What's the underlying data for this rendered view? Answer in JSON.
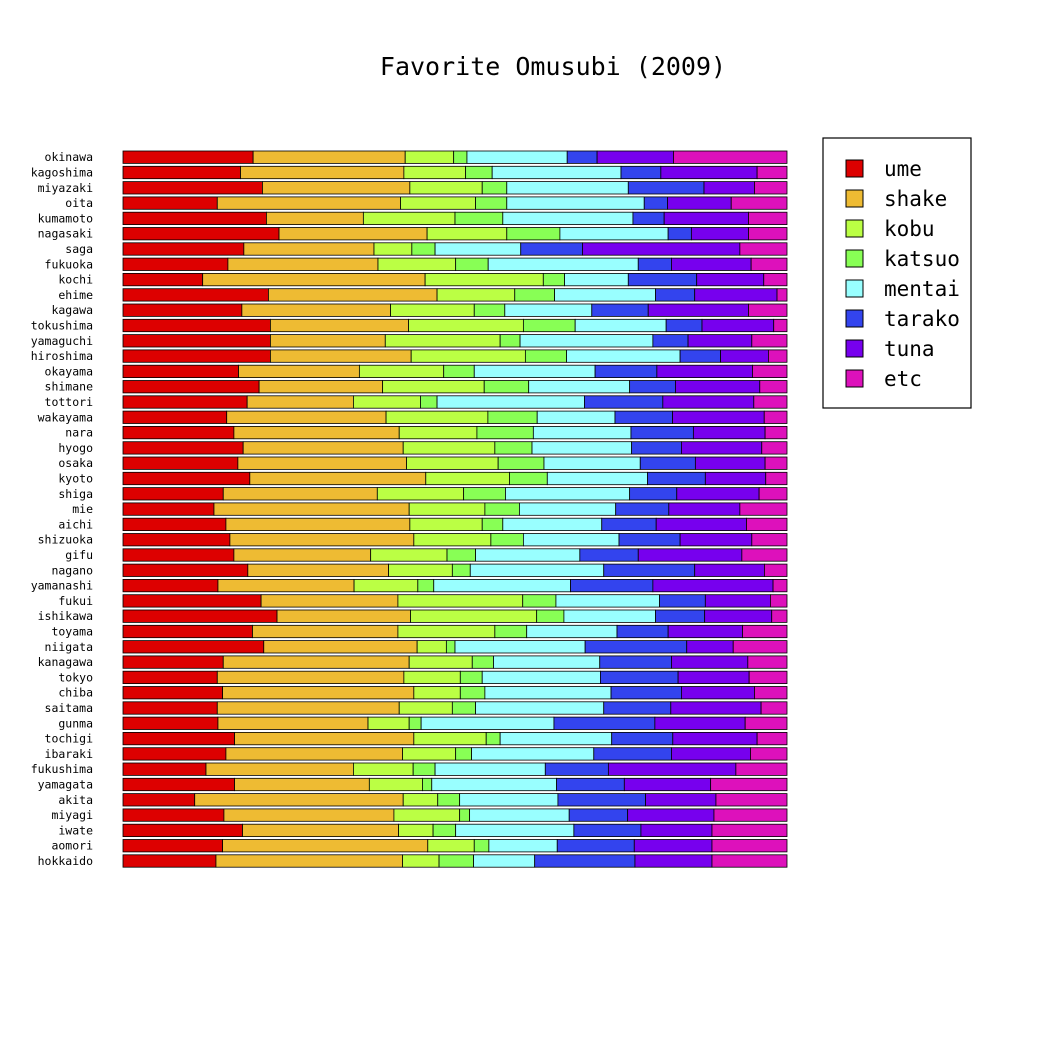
{
  "chart_data": {
    "type": "bar",
    "orientation": "horizontal",
    "stacked": "percent",
    "title": "Favorite Omusubi (2009)",
    "legend_position": "right",
    "categories": [
      "okinawa",
      "kagoshima",
      "miyazaki",
      "oita",
      "kumamoto",
      "nagasaki",
      "saga",
      "fukuoka",
      "kochi",
      "ehime",
      "kagawa",
      "tokushima",
      "yamaguchi",
      "hiroshima",
      "okayama",
      "shimane",
      "tottori",
      "wakayama",
      "nara",
      "hyogo",
      "osaka",
      "kyoto",
      "shiga",
      "mie",
      "aichi",
      "shizuoka",
      "gifu",
      "nagano",
      "yamanashi",
      "fukui",
      "ishikawa",
      "toyama",
      "niigata",
      "kanagawa",
      "tokyo",
      "chiba",
      "saitama",
      "gunma",
      "tochigi",
      "ibaraki",
      "fukushima",
      "yamagata",
      "akita",
      "miyagi",
      "iwate",
      "aomori",
      "hokkaido"
    ],
    "series": [
      {
        "name": "ume",
        "color": "#dd0000",
        "values": [
          19.6,
          17.7,
          21.0,
          14.2,
          21.6,
          23.5,
          18.2,
          15.8,
          12.0,
          21.9,
          17.9,
          22.2,
          22.2,
          22.2,
          17.4,
          20.5,
          18.7,
          16.4,
          16.7,
          18.1,
          17.3,
          19.1,
          15.1,
          13.7,
          15.5,
          16.1,
          16.7,
          18.8,
          14.3,
          20.8,
          23.2,
          19.5,
          21.2,
          15.1,
          14.2,
          15.0,
          14.2,
          14.3,
          16.8,
          15.5,
          12.5,
          16.8,
          10.8,
          15.2,
          18.0,
          15.0,
          14.0
        ]
      },
      {
        "name": "shake",
        "color": "#eebb33",
        "values": [
          22.9,
          24.6,
          22.2,
          27.6,
          14.6,
          22.3,
          19.6,
          22.6,
          33.5,
          25.4,
          22.4,
          20.8,
          17.3,
          21.2,
          18.2,
          18.6,
          16.0,
          25.2,
          24.9,
          24.1,
          25.4,
          26.5,
          23.2,
          29.4,
          27.7,
          27.7,
          20.6,
          21.2,
          20.5,
          20.6,
          20.1,
          21.9,
          23.1,
          28.0,
          28.1,
          28.8,
          27.4,
          22.6,
          27.0,
          26.6,
          22.2,
          20.3,
          31.4,
          25.6,
          23.5,
          30.9,
          28.1
        ]
      },
      {
        "name": "kobu",
        "color": "#bbff44",
        "values": [
          7.3,
          9.3,
          10.9,
          11.3,
          13.8,
          12.0,
          5.7,
          11.7,
          17.8,
          11.7,
          12.6,
          17.3,
          17.3,
          17.2,
          12.7,
          15.3,
          10.1,
          16.1,
          11.7,
          13.8,
          13.8,
          12.6,
          13.0,
          11.4,
          10.9,
          11.6,
          11.5,
          9.6,
          9.6,
          18.8,
          19.0,
          14.6,
          4.4,
          9.5,
          8.5,
          7.0,
          8.0,
          6.2,
          10.9,
          8.0,
          9.0,
          8.0,
          5.2,
          9.9,
          5.2,
          7.0,
          5.5
        ]
      },
      {
        "name": "katsuo",
        "color": "#88ff55",
        "values": [
          2.0,
          4.0,
          3.7,
          4.7,
          7.2,
          8.0,
          3.5,
          4.9,
          3.2,
          6.0,
          4.6,
          7.8,
          3.0,
          6.2,
          4.6,
          6.7,
          2.5,
          7.8,
          8.5,
          5.6,
          6.9,
          5.7,
          6.3,
          5.2,
          3.1,
          4.9,
          4.3,
          2.7,
          2.4,
          5.0,
          4.1,
          4.8,
          1.3,
          3.2,
          3.3,
          3.7,
          3.5,
          1.8,
          2.1,
          2.4,
          3.3,
          1.4,
          3.3,
          1.5,
          3.4,
          2.2,
          5.2
        ]
      },
      {
        "name": "mentai",
        "color": "#99ffff",
        "values": [
          15.1,
          19.4,
          18.3,
          20.7,
          19.6,
          16.3,
          12.9,
          22.6,
          9.6,
          15.2,
          13.1,
          13.7,
          20.0,
          17.1,
          18.2,
          15.2,
          22.2,
          12.3,
          14.7,
          15.0,
          14.5,
          15.1,
          18.7,
          14.5,
          14.9,
          14.4,
          15.7,
          20.1,
          20.6,
          15.6,
          13.8,
          13.6,
          19.6,
          16.0,
          17.8,
          19.0,
          19.3,
          20.0,
          16.8,
          18.4,
          16.6,
          18.8,
          14.8,
          15.0,
          17.8,
          10.3,
          9.2
        ]
      },
      {
        "name": "tarako",
        "color": "#3344ee",
        "values": [
          4.5,
          6.0,
          11.4,
          3.5,
          4.7,
          3.5,
          9.3,
          5.0,
          10.3,
          5.9,
          8.5,
          5.4,
          5.3,
          6.1,
          9.3,
          6.9,
          11.8,
          9.1,
          9.4,
          7.5,
          8.3,
          8.7,
          7.1,
          8.0,
          8.2,
          9.2,
          8.8,
          13.7,
          12.4,
          6.9,
          7.4,
          7.7,
          15.3,
          10.8,
          11.7,
          10.6,
          10.1,
          15.2,
          9.2,
          11.7,
          9.5,
          10.2,
          13.2,
          8.8,
          10.1,
          11.6,
          15.1
        ]
      },
      {
        "name": "tuna",
        "color": "#7700ee",
        "values": [
          11.5,
          14.5,
          7.6,
          9.6,
          12.7,
          8.6,
          23.7,
          12.0,
          10.1,
          12.4,
          15.1,
          10.8,
          9.6,
          7.2,
          14.4,
          12.7,
          13.7,
          14.5,
          10.8,
          12.1,
          10.5,
          9.1,
          12.4,
          10.7,
          13.6,
          10.8,
          15.6,
          10.5,
          18.1,
          9.8,
          10.1,
          11.2,
          7.0,
          11.5,
          10.7,
          11.0,
          13.6,
          13.6,
          12.7,
          11.9,
          19.2,
          13.0,
          10.6,
          13.0,
          10.7,
          11.7,
          11.6
        ]
      },
      {
        "name": "etc",
        "color": "#dd11bb",
        "values": [
          17.1,
          4.5,
          4.9,
          8.4,
          5.8,
          5.8,
          7.1,
          5.4,
          3.5,
          1.5,
          5.8,
          2.0,
          5.3,
          2.8,
          5.2,
          4.1,
          5.0,
          3.6,
          3.3,
          3.8,
          3.3,
          3.2,
          4.2,
          7.1,
          6.1,
          5.3,
          6.8,
          3.4,
          2.1,
          2.5,
          2.3,
          6.7,
          8.1,
          5.9,
          5.7,
          4.9,
          3.9,
          6.3,
          4.5,
          5.5,
          7.7,
          11.5,
          10.7,
          11.0,
          11.3,
          11.3,
          11.3
        ]
      }
    ]
  }
}
